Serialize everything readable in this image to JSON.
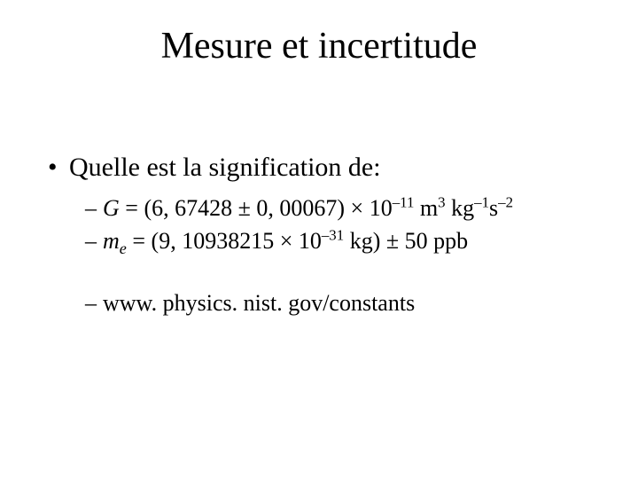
{
  "title": "Mesure et incertitude",
  "q": "Quelle est la signification de:",
  "g": {
    "sym": "G",
    "val": "(6, 67428 ± 0, 00067)",
    "times": " × 10",
    "exp1": "–11",
    "u1": " m",
    "u1e": "3",
    "u2": " kg",
    "u2e": "–1",
    "u3": "s",
    "u3e": "–2"
  },
  "me": {
    "sym": "m",
    "sub": "e",
    "val": "(9, 10938215 × 10",
    "exp": "–31",
    "rest": " kg) ± 50 ppb"
  },
  "url": "www. physics. nist. gov/constants"
}
